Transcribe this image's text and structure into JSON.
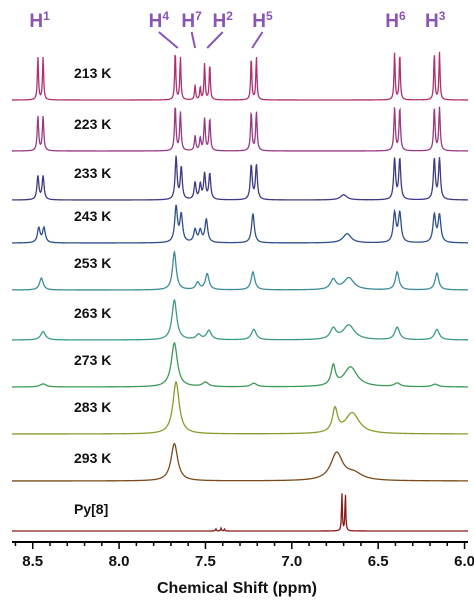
{
  "chart_data": {
    "type": "line",
    "xlabel": "Chemical Shift (ppm)",
    "xlim": [
      8.62,
      5.98
    ],
    "x_reversed": true,
    "xticks": [
      {
        "value": 8.5,
        "label": "8.5"
      },
      {
        "value": 8.0,
        "label": "8.0"
      },
      {
        "value": 7.5,
        "label": "7.5"
      },
      {
        "value": 7.0,
        "label": "7.0"
      },
      {
        "value": 6.5,
        "label": "6.5"
      },
      {
        "value": 6.0,
        "label": "6.0"
      }
    ],
    "peak_labels": [
      {
        "text": "H",
        "sup": "1",
        "x": 8.46,
        "target": 8.46
      },
      {
        "text": "H",
        "sup": "4",
        "x": 7.77,
        "target": 7.66
      },
      {
        "text": "H",
        "sup": "7",
        "x": 7.58,
        "target": 7.56
      },
      {
        "text": "H",
        "sup": "2",
        "x": 7.4,
        "target": 7.49
      },
      {
        "text": "H",
        "sup": "5",
        "x": 7.17,
        "target": 7.23
      },
      {
        "text": "H",
        "sup": "6",
        "x": 6.4,
        "target": 6.39
      },
      {
        "text": "H",
        "sup": "3",
        "x": 6.17,
        "target": 6.16
      }
    ],
    "series": [
      {
        "name": "213 K",
        "color": "#b0306f",
        "width_scale": 0.35,
        "baseline": 0,
        "peaks": [
          [
            8.47,
            1.0
          ],
          [
            8.44,
            1.0
          ],
          [
            7.675,
            1.15
          ],
          [
            7.645,
            1.0
          ],
          [
            7.56,
            0.35
          ],
          [
            7.53,
            0.3
          ],
          [
            7.505,
            0.85
          ],
          [
            7.475,
            0.85
          ],
          [
            7.235,
            1.0
          ],
          [
            7.205,
            1.0
          ],
          [
            6.405,
            1.1
          ],
          [
            6.375,
            1.1
          ],
          [
            6.175,
            1.1
          ],
          [
            6.145,
            1.1
          ]
        ]
      },
      {
        "name": "223 K",
        "color": "#983a84",
        "width_scale": 0.45,
        "baseline": 0,
        "peaks": [
          [
            8.47,
            0.8
          ],
          [
            8.44,
            0.8
          ],
          [
            7.675,
            1.05
          ],
          [
            7.645,
            0.9
          ],
          [
            7.56,
            0.35
          ],
          [
            7.53,
            0.3
          ],
          [
            7.505,
            0.75
          ],
          [
            7.475,
            0.75
          ],
          [
            7.235,
            0.9
          ],
          [
            7.205,
            0.9
          ],
          [
            6.405,
            1.0
          ],
          [
            6.375,
            1.0
          ],
          [
            6.175,
            1.0
          ],
          [
            6.145,
            1.0
          ]
        ]
      },
      {
        "name": "233 K",
        "color": "#3f3a84",
        "width_scale": 0.6,
        "baseline": 0,
        "peaks": [
          [
            8.47,
            0.55
          ],
          [
            8.44,
            0.55
          ],
          [
            7.67,
            1.0
          ],
          [
            7.64,
            0.75
          ],
          [
            7.56,
            0.4
          ],
          [
            7.53,
            0.35
          ],
          [
            7.505,
            0.6
          ],
          [
            7.475,
            0.6
          ],
          [
            7.235,
            0.8
          ],
          [
            7.205,
            0.8
          ],
          [
            6.7,
            0.12,
            3.5
          ],
          [
            6.405,
            0.95
          ],
          [
            6.375,
            0.95
          ],
          [
            6.175,
            0.95
          ],
          [
            6.145,
            0.95
          ]
        ]
      },
      {
        "name": "243 K",
        "color": "#2e4f8a",
        "width_scale": 0.85,
        "baseline": 0,
        "peaks": [
          [
            8.465,
            0.35
          ],
          [
            8.435,
            0.35
          ],
          [
            7.67,
            0.85
          ],
          [
            7.64,
            0.65
          ],
          [
            7.56,
            0.3
          ],
          [
            7.53,
            0.28
          ],
          [
            7.495,
            0.55
          ],
          [
            7.225,
            0.7
          ],
          [
            6.68,
            0.22,
            3.0
          ],
          [
            6.405,
            0.7
          ],
          [
            6.375,
            0.7
          ],
          [
            6.175,
            0.65
          ],
          [
            6.145,
            0.65
          ]
        ]
      },
      {
        "name": "253 K",
        "color": "#3a8c9a",
        "width_scale": 1.15,
        "baseline": 0,
        "peaks": [
          [
            8.45,
            0.3
          ],
          [
            7.68,
            0.95
          ],
          [
            7.545,
            0.18
          ],
          [
            7.49,
            0.4
          ],
          [
            7.225,
            0.45
          ],
          [
            6.76,
            0.25,
            1.5
          ],
          [
            6.67,
            0.3,
            2.8
          ],
          [
            6.39,
            0.45
          ],
          [
            6.16,
            0.42
          ]
        ]
      },
      {
        "name": "263 K",
        "color": "#3a9a88",
        "width_scale": 1.5,
        "baseline": 0,
        "peaks": [
          [
            8.44,
            0.2
          ],
          [
            7.68,
            0.95
          ],
          [
            7.54,
            0.12
          ],
          [
            7.48,
            0.22
          ],
          [
            7.22,
            0.25
          ],
          [
            6.76,
            0.25,
            1.2
          ],
          [
            6.67,
            0.35,
            2.4
          ],
          [
            6.39,
            0.3
          ],
          [
            6.16,
            0.25
          ]
        ]
      },
      {
        "name": "273 K",
        "color": "#3b9a55",
        "width_scale": 1.9,
        "baseline": 0,
        "peaks": [
          [
            8.44,
            0.07
          ],
          [
            7.68,
            1.0
          ],
          [
            7.5,
            0.1
          ],
          [
            7.22,
            0.08
          ],
          [
            6.76,
            0.45,
            0.7
          ],
          [
            6.66,
            0.45,
            2.2
          ],
          [
            6.39,
            0.08
          ],
          [
            6.17,
            0.06
          ]
        ]
      },
      {
        "name": "283 K",
        "color": "#8a9a2a",
        "width_scale": 2.0,
        "baseline": 0,
        "peaks": [
          [
            7.67,
            1.0
          ],
          [
            6.75,
            0.45,
            0.8
          ],
          [
            6.65,
            0.4,
            2.2
          ]
        ]
      },
      {
        "name": "293 K",
        "color": "#7a4a1a",
        "width_scale": 2.1,
        "baseline": 0,
        "peaks": [
          [
            7.68,
            0.85
          ],
          [
            6.74,
            0.62,
            1.8
          ],
          [
            6.64,
            0.15,
            2.5
          ]
        ]
      },
      {
        "name": "Py[8]",
        "color": "#8a1a1a",
        "width_scale": 0.25,
        "baseline": 0,
        "peaks": [
          [
            7.44,
            0.1
          ],
          [
            7.41,
            0.12
          ],
          [
            7.39,
            0.08
          ],
          [
            6.71,
            1.6
          ],
          [
            6.69,
            1.6
          ]
        ]
      }
    ]
  }
}
